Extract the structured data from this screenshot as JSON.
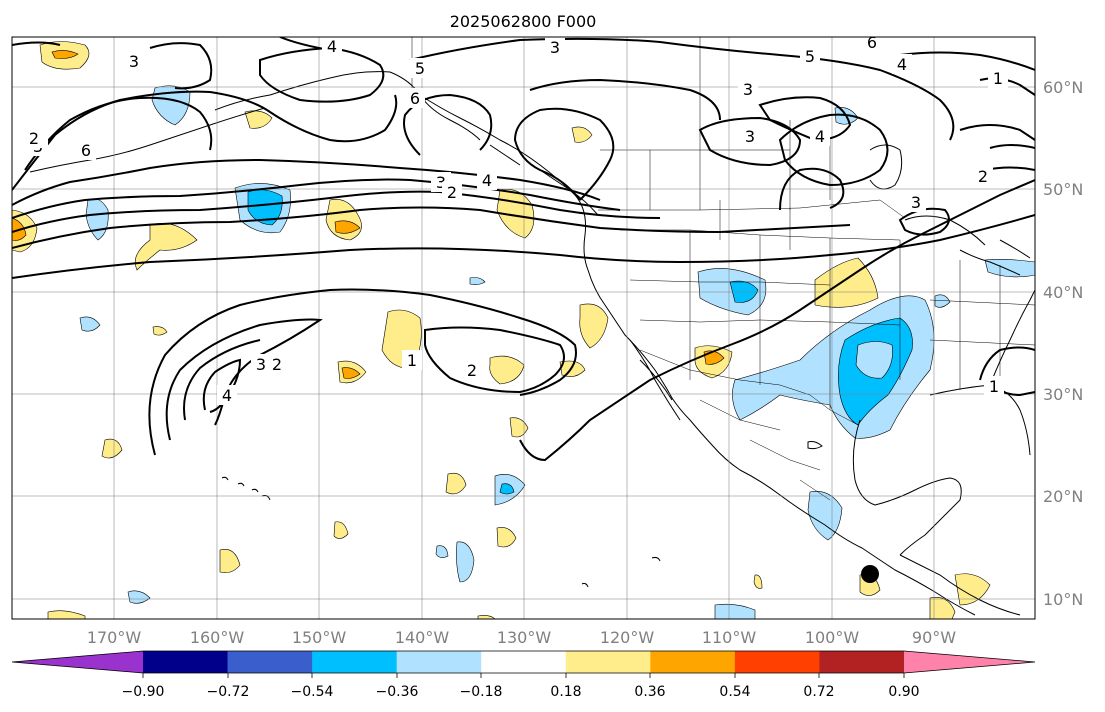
{
  "title": "2025062800 F000",
  "map": {
    "lon_labels": [
      "170°W",
      "160°W",
      "150°W",
      "140°W",
      "130°W",
      "120°W",
      "110°W",
      "100°W",
      "90°W"
    ],
    "lat_labels": [
      "60°N",
      "50°N",
      "40°N",
      "30°N",
      "20°N",
      "10°N"
    ],
    "contour_labels": [
      "3",
      "3",
      "4",
      "3",
      "5",
      "5",
      "6",
      "4",
      "1",
      "6",
      "3",
      "3",
      "4",
      "2",
      "6",
      "3",
      "4",
      "3",
      "2",
      "2",
      "3",
      "2",
      "1",
      "2",
      "1",
      "4"
    ]
  },
  "colorbar": {
    "tick_labels": [
      "−0.90",
      "−0.72",
      "−0.54",
      "−0.36",
      "−0.18",
      "0.18",
      "0.36",
      "0.54",
      "0.72",
      "0.90"
    ],
    "colors": [
      "#9a32cd",
      "#00008b",
      "#3a5fcd",
      "#00bfff",
      "#b0e2ff",
      "#ffffff",
      "#ffec8b",
      "#ffa500",
      "#ff4000",
      "#b22222",
      "#ff82ab"
    ]
  }
}
